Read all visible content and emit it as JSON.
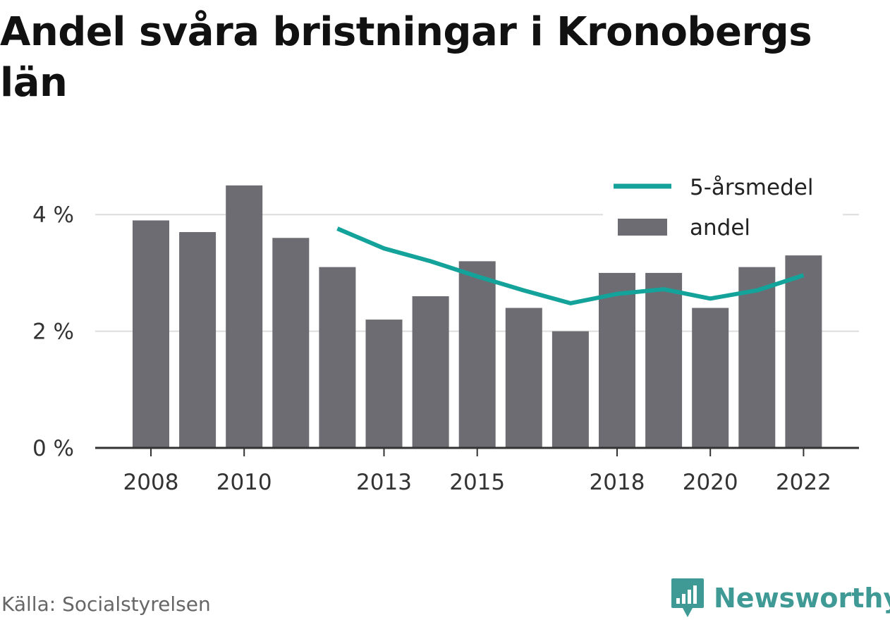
{
  "title": "Andel svåra bristningar i Kronobergs län",
  "source": "Källa: Socialstyrelsen",
  "brand": {
    "name": "Newsworthy",
    "icon": "newsworthy-logo-icon",
    "color": "#3f9a96"
  },
  "colors": {
    "bar": "#6d6c72",
    "line": "#14a39a",
    "grid": "#dddddd",
    "axis": "#333333"
  },
  "chart_data": {
    "type": "bar",
    "x": [
      2008,
      2009,
      2010,
      2011,
      2012,
      2013,
      2014,
      2015,
      2016,
      2017,
      2018,
      2019,
      2020,
      2021,
      2022
    ],
    "x_tick_labels": [
      "2008",
      "2010",
      "2013",
      "2015",
      "2018",
      "2020",
      "2022"
    ],
    "x_tick_values": [
      2008,
      2010,
      2013,
      2015,
      2018,
      2020,
      2022
    ],
    "y_ticks": [
      0,
      2,
      4
    ],
    "y_tick_labels": [
      "0 %",
      "2 %",
      "4 %"
    ],
    "ylim": [
      0,
      4.45
    ],
    "grid": true,
    "legend_position": "top-right",
    "series": [
      {
        "name": "andel",
        "type": "bar",
        "values": [
          3.9,
          3.7,
          4.5,
          3.6,
          3.1,
          2.2,
          2.6,
          3.2,
          2.4,
          2.0,
          3.0,
          3.0,
          2.4,
          3.1,
          3.3
        ]
      },
      {
        "name": "5-årsmedel",
        "type": "line",
        "values": [
          null,
          null,
          null,
          null,
          3.76,
          3.42,
          3.2,
          2.94,
          2.7,
          2.48,
          2.64,
          2.72,
          2.56,
          2.7,
          2.96
        ]
      }
    ],
    "legend": [
      "5-årsmedel",
      "andel"
    ]
  }
}
